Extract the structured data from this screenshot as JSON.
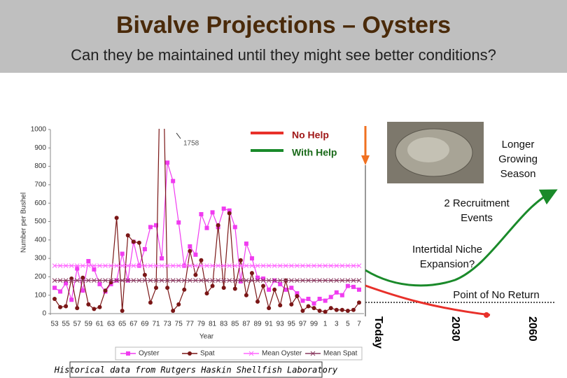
{
  "header": {
    "title": "Bivalve Projections – Oysters",
    "subtitle": "Can they be maintained until they might see better conditions?"
  },
  "chart_data": {
    "type": "line",
    "x_label": "Year",
    "y_label": "Number per Bushel",
    "annotation": "1758",
    "categories": [
      "53",
      null,
      "55",
      null,
      "57",
      null,
      "59",
      null,
      "61",
      null,
      "63",
      null,
      "65",
      null,
      "67",
      null,
      "69",
      null,
      "71",
      null,
      "73",
      null,
      "75",
      null,
      "77",
      null,
      "79",
      null,
      "81",
      null,
      "83",
      null,
      "85",
      null,
      "87",
      null,
      "89",
      null,
      "91",
      null,
      "93",
      null,
      "95",
      null,
      "97",
      null,
      "99",
      null,
      "1",
      null,
      "3",
      null,
      "5",
      null,
      "7"
    ],
    "series": [
      {
        "name": "Oyster",
        "color": "#f03cf0",
        "marker": "square",
        "values": [
          140,
          120,
          165,
          75,
          245,
          125,
          285,
          240,
          160,
          120,
          160,
          180,
          325,
          180,
          390,
          260,
          350,
          470,
          480,
          300,
          820,
          720,
          495,
          260,
          365,
          320,
          540,
          465,
          550,
          470,
          570,
          560,
          470,
          175,
          380,
          300,
          195,
          190,
          130,
          180,
          160,
          130,
          140,
          110,
          70,
          80,
          55,
          80,
          70,
          90,
          115,
          100,
          150,
          145,
          130
        ]
      },
      {
        "name": "Spat",
        "color": "#7a1616",
        "marker": "circle",
        "values": [
          80,
          35,
          40,
          190,
          30,
          195,
          50,
          25,
          35,
          125,
          170,
          520,
          15,
          425,
          390,
          385,
          210,
          60,
          140,
          1758,
          140,
          15,
          50,
          130,
          340,
          210,
          290,
          110,
          150,
          480,
          140,
          545,
          135,
          290,
          100,
          220,
          65,
          150,
          30,
          130,
          45,
          180,
          50,
          95,
          15,
          40,
          30,
          15,
          10,
          30,
          20,
          20,
          15,
          20,
          60
        ]
      },
      {
        "name": "Mean Oyster",
        "color": "#ff66ff",
        "marker": "cross",
        "value": 260
      },
      {
        "name": "Mean Spat",
        "color": "#8a3a60",
        "marker": "cross",
        "value": 180
      }
    ],
    "ylim": [
      0,
      1000
    ],
    "yticks": [
      0,
      100,
      200,
      300,
      400,
      500,
      600,
      700,
      800,
      900,
      1000
    ]
  },
  "diagram": {
    "legend": [
      {
        "name": "No Help",
        "color": "#e8302a"
      },
      {
        "name": "With Help",
        "color": "#1a8a2a"
      }
    ],
    "labels": [
      "Longer Growing Season",
      "2 Recruitment Events",
      "Intertidal Niche Expansion?",
      "Point of No Return"
    ],
    "timeline": [
      "Today",
      "2030",
      "2060"
    ]
  },
  "caption": "Historical data from Rutgers Haskin Shellfish Laboratory"
}
